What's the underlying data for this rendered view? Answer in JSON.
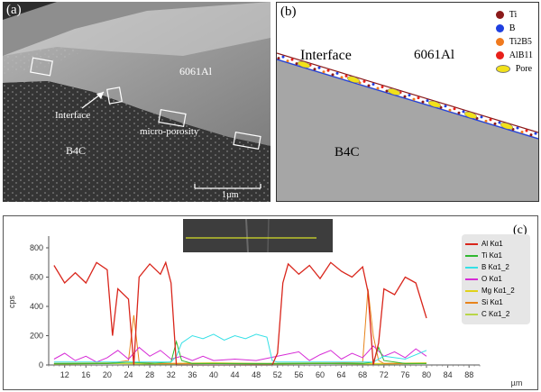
{
  "panel_a": {
    "label": "(a)",
    "matrix_label": "6061Al",
    "interface_label": "Interface",
    "porosity_label": "micro-porosity",
    "ceramic_label": "B4C",
    "scale_label": "1µm"
  },
  "panel_b": {
    "label": "(b)",
    "interface_label": "Interface",
    "matrix_label": "6061Al",
    "ceramic_label": "B4C",
    "legend": [
      {
        "name": "Ti",
        "color": "#8b1a1a",
        "shape": "dot"
      },
      {
        "name": "B",
        "color": "#1f3fe0",
        "shape": "dot"
      },
      {
        "name": "Ti2B5",
        "color": "#f07a1e",
        "shape": "dot"
      },
      {
        "name": "AlB11",
        "color": "#e8201a",
        "shape": "dot"
      },
      {
        "name": "Pore",
        "color": "#f2e11a",
        "shape": "ellipse"
      }
    ]
  },
  "chart_data": {
    "type": "line",
    "label": "(c)",
    "ylabel": "cps",
    "xlabel": "µm",
    "ylim": [
      0,
      880
    ],
    "xlim": [
      9,
      90
    ],
    "xticks": [
      12,
      16,
      20,
      24,
      28,
      32,
      36,
      40,
      44,
      48,
      52,
      56,
      60,
      64,
      68,
      72,
      76,
      80,
      84,
      88
    ],
    "yticks": [
      0,
      200,
      400,
      600,
      800
    ],
    "series": [
      {
        "name": "Al Kα1",
        "color": "#d9261c",
        "x": [
          10,
          12,
          14,
          16,
          18,
          20,
          21,
          22,
          24,
          25,
          26,
          28,
          30,
          31,
          32,
          33,
          36,
          40,
          44,
          48,
          51,
          52,
          53,
          54,
          56,
          58,
          60,
          62,
          64,
          66,
          68,
          69,
          70,
          71,
          72,
          74,
          76,
          78,
          80
        ],
        "values": [
          680,
          560,
          630,
          560,
          700,
          650,
          200,
          520,
          450,
          0,
          600,
          690,
          620,
          700,
          560,
          0,
          0,
          0,
          0,
          0,
          0,
          80,
          560,
          690,
          620,
          680,
          590,
          700,
          640,
          600,
          670,
          500,
          0,
          150,
          520,
          480,
          600,
          560,
          320
        ]
      },
      {
        "name": "Ti Kα1",
        "color": "#2fb82f",
        "x": [
          10,
          20,
          24,
          28,
          32,
          33,
          34,
          36,
          40,
          44,
          48,
          52,
          56,
          60,
          64,
          68,
          70,
          71,
          72,
          76,
          80
        ],
        "values": [
          10,
          10,
          20,
          10,
          20,
          160,
          30,
          10,
          10,
          10,
          10,
          10,
          10,
          10,
          10,
          10,
          20,
          120,
          30,
          10,
          10
        ]
      },
      {
        "name": "B Kα1_2",
        "color": "#35e0e6",
        "x": [
          10,
          20,
          30,
          32,
          33,
          34,
          36,
          38,
          40,
          42,
          44,
          46,
          48,
          50,
          51,
          52,
          60,
          70,
          72,
          76,
          80
        ],
        "values": [
          20,
          20,
          20,
          20,
          60,
          150,
          200,
          180,
          210,
          170,
          200,
          180,
          210,
          190,
          30,
          20,
          20,
          20,
          60,
          40,
          100
        ]
      },
      {
        "name": "O Kα1",
        "color": "#d62bd6",
        "x": [
          10,
          12,
          14,
          16,
          18,
          20,
          22,
          24,
          26,
          28,
          30,
          32,
          34,
          36,
          38,
          40,
          44,
          48,
          52,
          56,
          58,
          60,
          62,
          64,
          66,
          68,
          70,
          72,
          74,
          76,
          78,
          80
        ],
        "values": [
          40,
          80,
          30,
          60,
          20,
          50,
          100,
          40,
          120,
          60,
          100,
          40,
          60,
          30,
          60,
          30,
          40,
          30,
          60,
          90,
          30,
          70,
          100,
          40,
          80,
          50,
          130,
          60,
          90,
          50,
          110,
          60
        ]
      },
      {
        "name": "Mg Kα1_2",
        "color": "#e0d21a",
        "x": [
          10,
          20,
          30,
          40,
          50,
          60,
          70,
          80
        ],
        "values": [
          10,
          15,
          10,
          15,
          10,
          15,
          10,
          15
        ]
      },
      {
        "name": "Si Kα1",
        "color": "#e8841c",
        "x": [
          10,
          20,
          24,
          25,
          26,
          30,
          40,
          50,
          60,
          68,
          69,
          70,
          71,
          72,
          80
        ],
        "values": [
          10,
          10,
          30,
          340,
          20,
          10,
          10,
          10,
          10,
          20,
          520,
          200,
          30,
          10,
          10
        ]
      },
      {
        "name": "C Kα1_2",
        "color": "#b9d64a",
        "x": [
          10,
          20,
          30,
          40,
          50,
          60,
          70,
          80
        ],
        "values": [
          5,
          10,
          5,
          10,
          5,
          10,
          5,
          10
        ]
      }
    ]
  }
}
